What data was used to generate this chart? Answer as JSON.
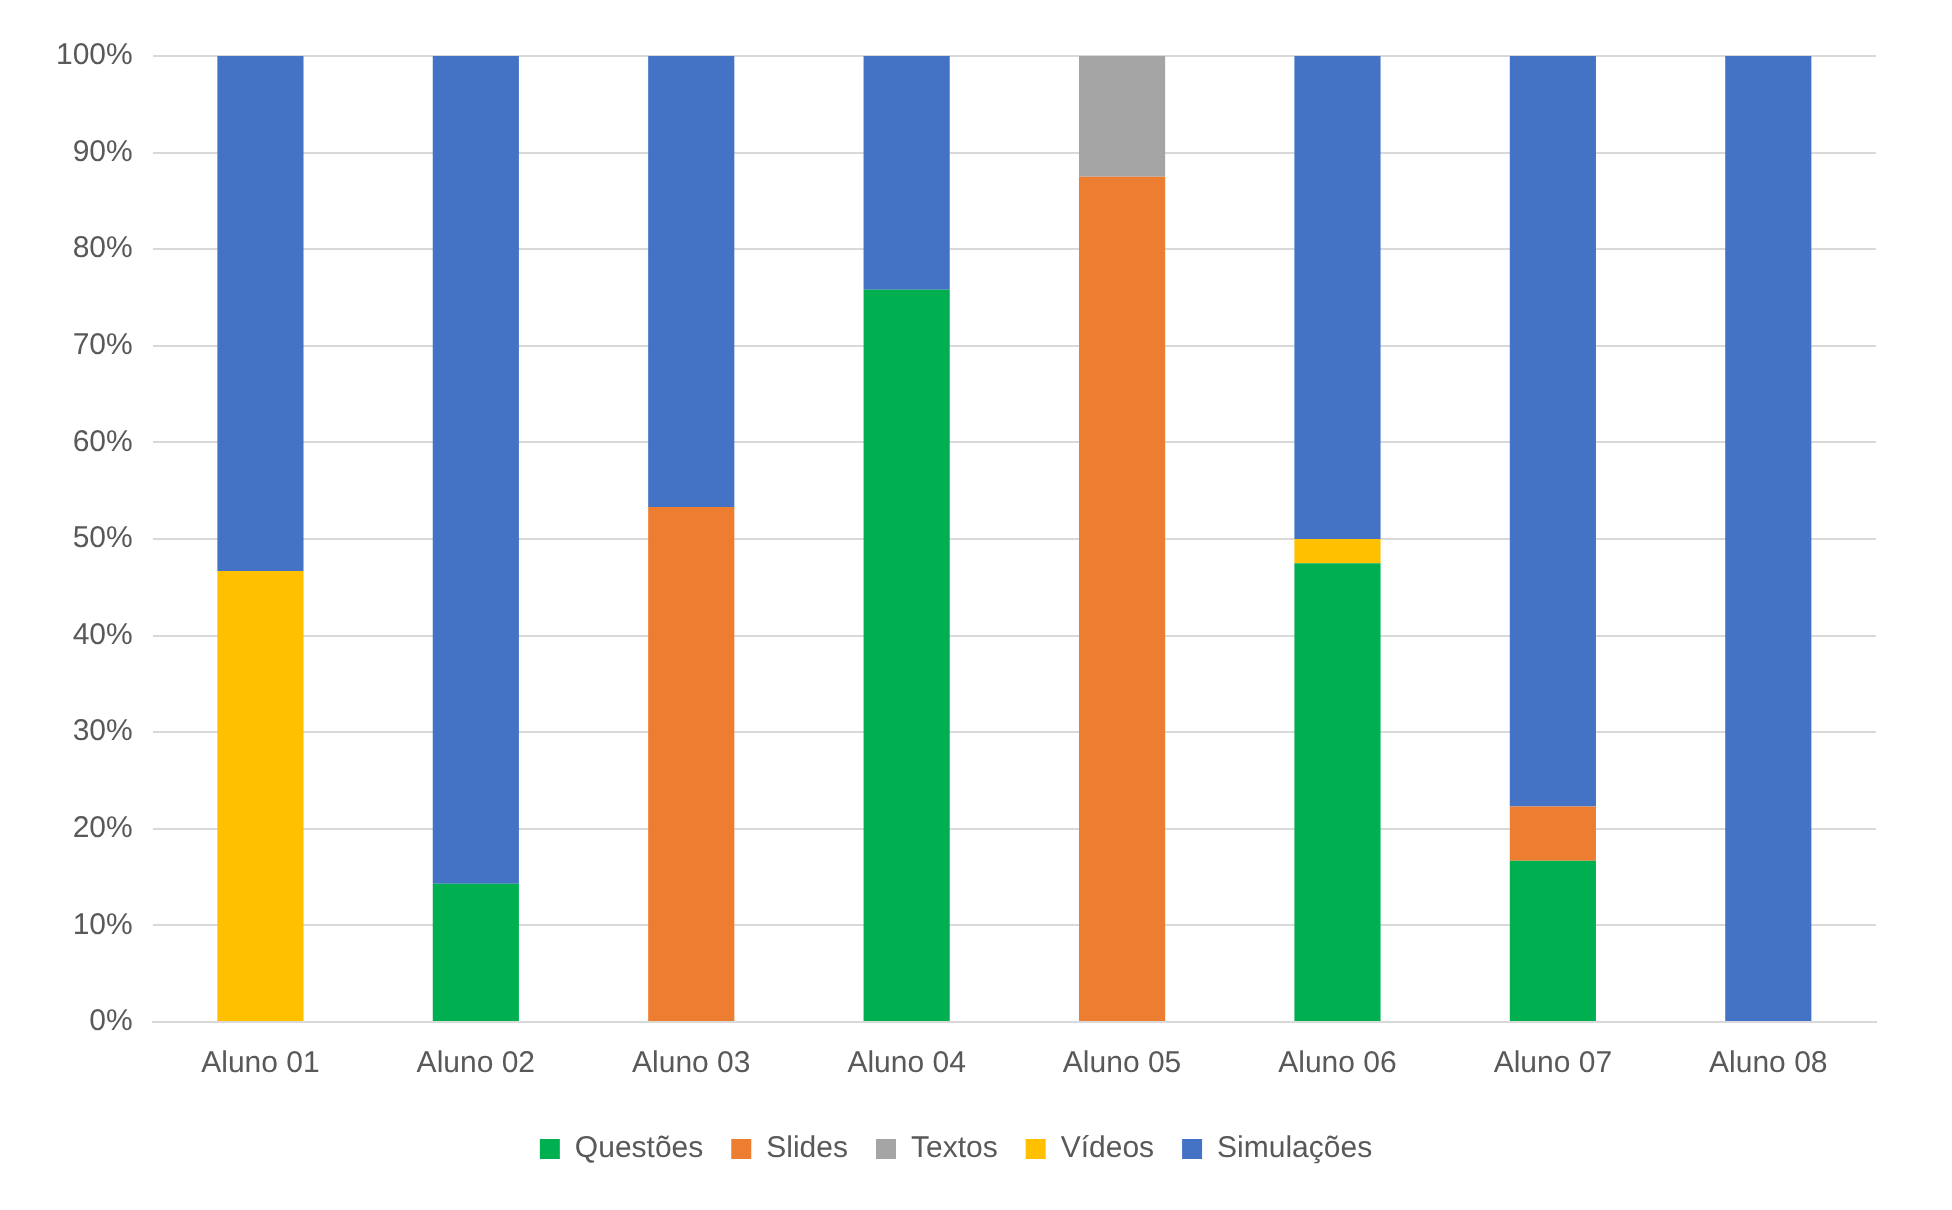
{
  "chart_data": {
    "type": "bar",
    "stacked": true,
    "categories": [
      "Aluno 01",
      "Aluno 02",
      "Aluno 03",
      "Aluno 04",
      "Aluno 05",
      "Aluno 06",
      "Aluno 07",
      "Aluno 08"
    ],
    "series": [
      {
        "name": "Questões",
        "color": "#00b050",
        "values": [
          0,
          14.3,
          0,
          75.8,
          0,
          47.5,
          16.7,
          0
        ]
      },
      {
        "name": "Slides",
        "color": "#ed7d31",
        "values": [
          0,
          0,
          53.3,
          0,
          87.5,
          0,
          5.6,
          0
        ]
      },
      {
        "name": "Textos",
        "color": "#a5a5a5",
        "values": [
          0,
          0,
          0,
          0,
          12.5,
          0,
          0,
          0
        ]
      },
      {
        "name": "Vídeos",
        "color": "#ffc000",
        "values": [
          46.7,
          0,
          0,
          0,
          0,
          2.5,
          0,
          0
        ]
      },
      {
        "name": "Simulações",
        "color": "#4472c4",
        "values": [
          53.3,
          85.7,
          46.7,
          24.2,
          0,
          50,
          77.7,
          100
        ]
      }
    ],
    "ylim": [
      0,
      100
    ],
    "yticks": [
      {
        "value": 0,
        "label": "0%"
      },
      {
        "value": 10,
        "label": "10%"
      },
      {
        "value": 20,
        "label": "20%"
      },
      {
        "value": 30,
        "label": "30%"
      },
      {
        "value": 40,
        "label": "40%"
      },
      {
        "value": 50,
        "label": "50%"
      },
      {
        "value": 60,
        "label": "60%"
      },
      {
        "value": 70,
        "label": "70%"
      },
      {
        "value": 80,
        "label": "80%"
      },
      {
        "value": 90,
        "label": "90%"
      },
      {
        "value": 100,
        "label": "100%"
      }
    ],
    "grid": "y",
    "legend": "bottom"
  }
}
